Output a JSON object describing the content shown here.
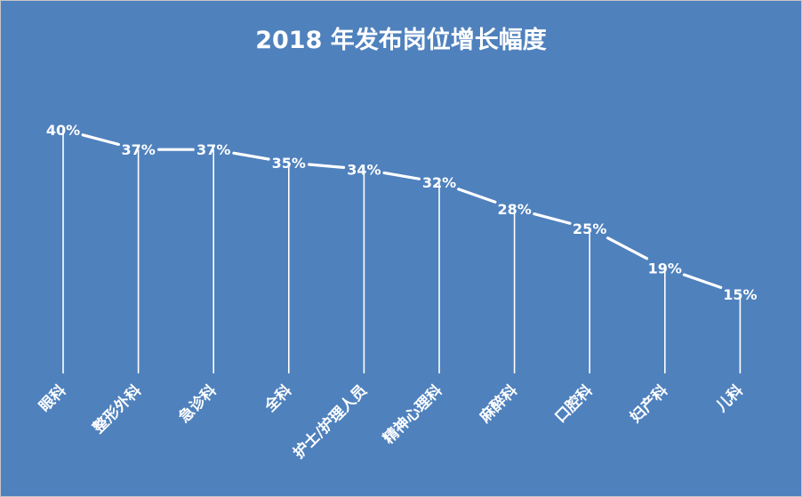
{
  "chart_data": {
    "type": "line",
    "title": "2018 年发布岗位增长幅度",
    "categories": [
      "眼科",
      "整形外科",
      "急诊科",
      "全科",
      "护士/护理人员",
      "精神心理科",
      "麻醉科",
      "口腔科",
      "妇产科",
      "儿科"
    ],
    "values": [
      40,
      37,
      37,
      35,
      34,
      32,
      28,
      25,
      19,
      15
    ],
    "value_labels": [
      "40%",
      "37%",
      "37%",
      "35%",
      "34%",
      "32%",
      "28%",
      "25%",
      "19%",
      "15%"
    ],
    "ylabel": "",
    "xlabel": "",
    "unit": "%",
    "grid": false,
    "legend": "none",
    "drop_lines": true,
    "background_color": "#4f81bd",
    "line_color": "#ffffff",
    "text_color": "#ffffff"
  }
}
